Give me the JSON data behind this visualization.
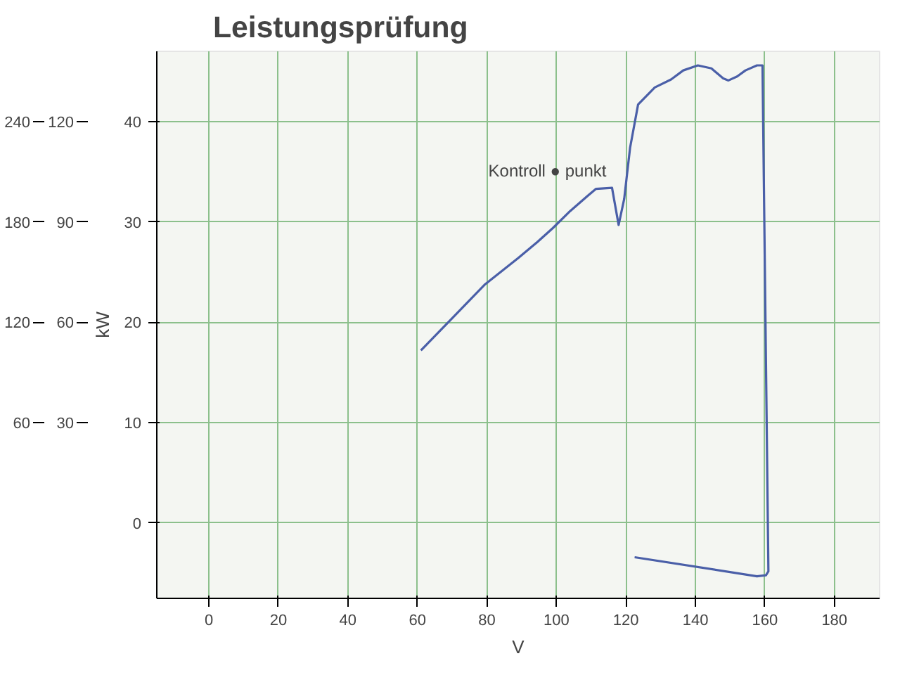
{
  "chart_data": {
    "type": "line",
    "title": "Leistungsprüfung",
    "xlabel": "V",
    "ylabel": "kW",
    "annotations": [
      {
        "text": "Kontroll ● punkt",
        "x": 116,
        "y": 33.4
      }
    ],
    "series": [
      {
        "color": "#4a5fa8",
        "x": [
          61,
          69.7,
          79.5,
          89,
          94.5,
          99,
          104,
          109,
          111.4,
          116,
          117.9,
          119.5,
          121.2,
          123.5,
          128.3,
          133,
          136.5,
          140.7,
          144.6,
          148,
          149.5,
          152,
          154.4,
          157.7,
          159.3,
          161,
          160.3,
          157.7,
          122.5
        ],
        "values": [
          17.2,
          20.3,
          23.8,
          26.4,
          28.0,
          29.4,
          31.1,
          32.6,
          33.3,
          33.4,
          29.7,
          32.3,
          37.4,
          41.7,
          43.4,
          44.2,
          45.1,
          45.6,
          45.3,
          44.3,
          44.1,
          44.5,
          45.1,
          45.6,
          45.6,
          -4.8,
          -5.2,
          -5.3,
          -3.4
        ]
      }
    ],
    "xlim": [
      -15,
      193
    ],
    "ylim": [
      -7.5,
      47
    ],
    "xticks": [
      0,
      20,
      40,
      60,
      80,
      100,
      120,
      140,
      160,
      180
    ],
    "yticks": [
      0,
      10,
      20,
      30,
      40
    ],
    "y2lim": [
      -22.5,
      141
    ],
    "y2ticks": [
      30,
      60,
      90,
      120
    ],
    "y3lim": [
      -45,
      282
    ],
    "y3ticks": [
      60,
      120,
      180,
      240
    ],
    "grid": true,
    "marker": "none",
    "line_style": "solid"
  }
}
